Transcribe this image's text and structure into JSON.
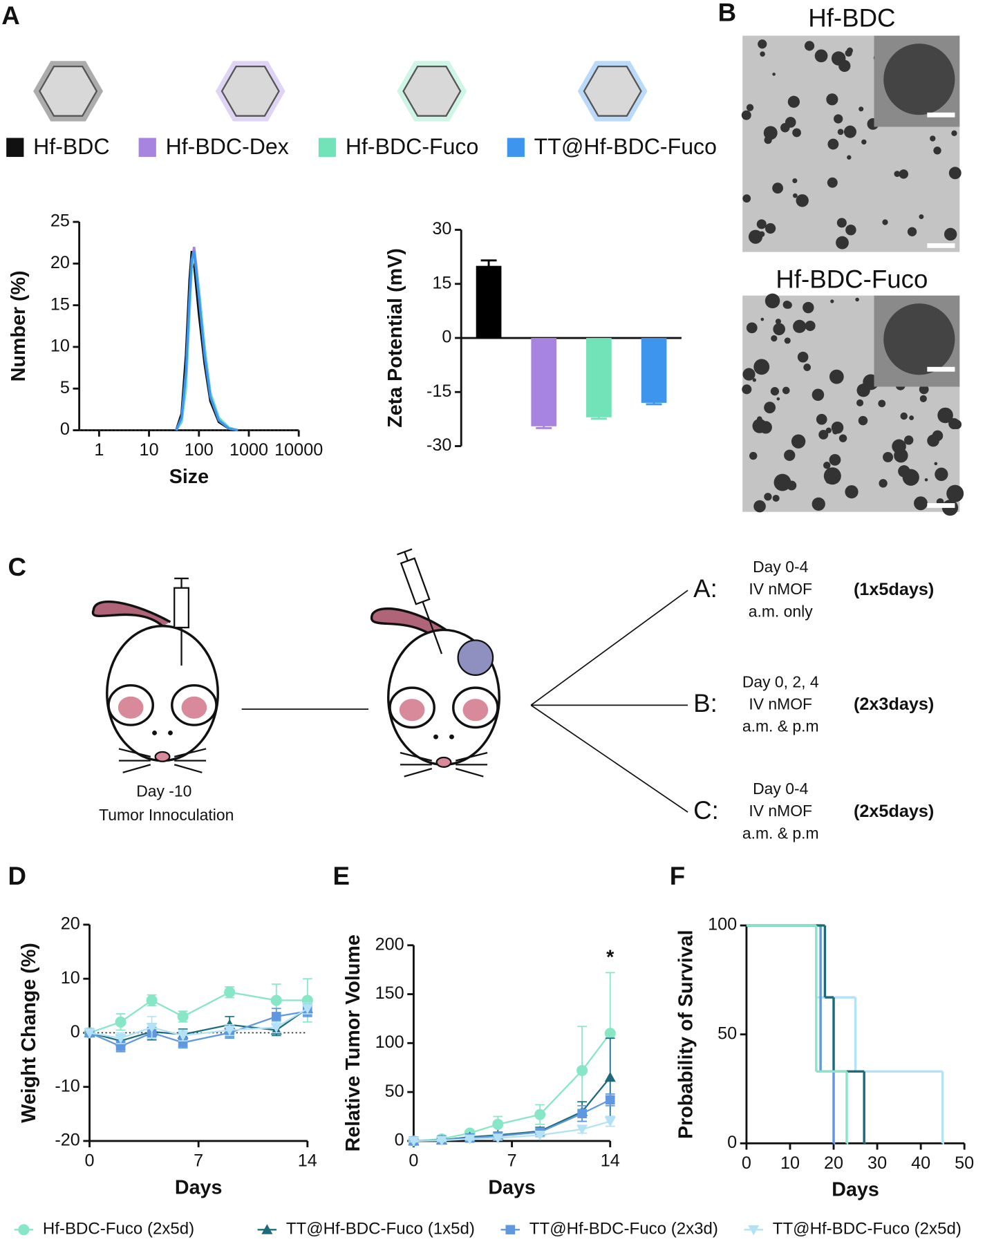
{
  "panels": [
    "A",
    "B",
    "C",
    "D",
    "E",
    "F"
  ],
  "images": [
    {
      "title": "Hf-BDC"
    },
    {
      "title": "Hf-BDC-Fuco"
    }
  ],
  "diagram": {
    "inoculation": [
      "Day -10",
      "Tumor Innoculation"
    ],
    "arms": [
      {
        "label": "A:",
        "lines": [
          "Day 0-4",
          "IV nMOF",
          "a.m. only"
        ],
        "regimen": "(1x5days)"
      },
      {
        "label": "B:",
        "lines": [
          "Day 0, 2, 4",
          "IV nMOF",
          "a.m. & p.m"
        ],
        "regimen": "(2x3days)"
      },
      {
        "label": "C:",
        "lines": [
          "Day 0-4",
          "IV nMOF",
          "a.m. & p.m"
        ],
        "regimen": "(2x5days)"
      }
    ]
  },
  "chart_data": [
    {
      "type": "line",
      "xlog": true,
      "y_label": "Number (%)",
      "x_label": "Size",
      "xlim": [
        0.4,
        10000
      ],
      "xticks": [
        1,
        10,
        100,
        1000,
        10000
      ],
      "ylim": [
        0,
        25
      ],
      "yticks": [
        0,
        5,
        10,
        15,
        20,
        25
      ],
      "zero_line": true,
      "series": [
        {
          "name": "Hf-BDC",
          "color": "#111111",
          "x": [
            35,
            45,
            55,
            65,
            72,
            80,
            100,
            130,
            170,
            250,
            400,
            600
          ],
          "values": [
            0,
            2,
            9,
            18,
            21.5,
            20,
            14,
            8,
            3.5,
            1,
            0.2,
            0
          ]
        },
        {
          "name": "Hf-BDC-Dex",
          "color": "#a784e0",
          "x": [
            35,
            45,
            55,
            65,
            72,
            80,
            100,
            130,
            170,
            250,
            400,
            600
          ],
          "values": [
            0,
            1,
            6,
            15,
            20,
            22,
            17,
            10,
            4.5,
            1.5,
            0.3,
            0
          ]
        },
        {
          "name": "Hf-BDC-Fuco",
          "color": "#72e3b8",
          "x": [
            35,
            45,
            55,
            65,
            72,
            80,
            100,
            130,
            170,
            250,
            400,
            600
          ],
          "values": [
            0,
            1,
            5,
            14,
            19.5,
            21,
            17,
            10,
            4.5,
            1.5,
            0.3,
            0
          ]
        },
        {
          "name": "TT@Hf-BDC-Fuco",
          "color": "#3d95ee",
          "x": [
            35,
            45,
            55,
            65,
            72,
            80,
            100,
            130,
            170,
            250,
            400,
            600
          ],
          "values": [
            0,
            1.5,
            7,
            16,
            20.5,
            21.5,
            16,
            9,
            4,
            1.2,
            0.2,
            0
          ]
        }
      ]
    },
    {
      "type": "bar",
      "y_label": "Zeta Potential (mV)",
      "categories": [
        null,
        null,
        null,
        null
      ],
      "values": [
        20,
        -24.5,
        -22,
        -18
      ],
      "errors": [
        1.5,
        0.5,
        0.4,
        0.4
      ],
      "colors": [
        "#000000",
        "#a784e0",
        "#72e3b8",
        "#3d95ee"
      ],
      "ylim": [
        -30,
        30
      ],
      "yticks": [
        30,
        15,
        0,
        -15,
        -30
      ]
    },
    {
      "type": "line",
      "y_label": "Weight Change (%)",
      "x_label": "Days",
      "xlim": [
        0,
        14
      ],
      "xticks": [
        0,
        7,
        14
      ],
      "ylim": [
        -20,
        20
      ],
      "yticks": [
        -20,
        -10,
        0,
        10,
        20
      ],
      "zero_line": true,
      "series": [
        {
          "name": "Hf-BDC-Fuco (2x5d)",
          "color": "#86e6c6",
          "marker": "circle",
          "x": [
            0,
            2,
            4,
            6,
            9,
            12,
            14
          ],
          "values": [
            0,
            2,
            6,
            3,
            7.5,
            6,
            6
          ],
          "errors": [
            0,
            1.5,
            1,
            1,
            1,
            3,
            4
          ]
        },
        {
          "name": "TT@Hf-BDC-Fuco (1x5d)",
          "color": "#1d6b7a",
          "marker": "triangle",
          "x": [
            0,
            2,
            4,
            6,
            9,
            12,
            14
          ],
          "values": [
            0,
            -1.5,
            0.2,
            -0.3,
            1.5,
            0.5,
            4.5
          ],
          "errors": [
            0,
            1,
            1.5,
            1,
            1.5,
            1,
            1
          ]
        },
        {
          "name": "TT@Hf-BDC-Fuco (2x3d)",
          "color": "#5f98e0",
          "marker": "square",
          "x": [
            0,
            2,
            4,
            6,
            9,
            12,
            14
          ],
          "values": [
            0,
            -2.5,
            0,
            -1.8,
            0,
            3,
            4
          ],
          "errors": [
            0,
            1,
            1,
            1,
            1,
            1.5,
            1
          ]
        },
        {
          "name": "TT@Hf-BDC-Fuco (2x5d)",
          "color": "#b3e2f7",
          "marker": "triangle-down",
          "x": [
            0,
            2,
            4,
            6,
            9,
            12,
            14
          ],
          "values": [
            0,
            -1,
            1,
            -0.5,
            0.5,
            1,
            4.5
          ],
          "errors": [
            0,
            1,
            2,
            1,
            1,
            1,
            1
          ]
        }
      ]
    },
    {
      "type": "line",
      "y_label": "Relative Tumor Volume",
      "x_label": "Days",
      "annotation": "*",
      "xlim": [
        0,
        14
      ],
      "xticks": [
        0,
        7,
        14
      ],
      "ylim": [
        0,
        200
      ],
      "yticks": [
        0,
        50,
        100,
        150,
        200
      ],
      "series": [
        {
          "color": "#86e6c6",
          "marker": "circle",
          "x": [
            0,
            2,
            4,
            6,
            9,
            12,
            14
          ],
          "values": [
            0,
            2,
            8,
            17,
            27,
            72,
            110
          ],
          "errors": [
            1,
            2,
            3,
            8,
            10,
            45,
            62
          ]
        },
        {
          "color": "#1d6b7a",
          "marker": "triangle",
          "x": [
            0,
            2,
            4,
            6,
            9,
            12,
            14
          ],
          "values": [
            0,
            1,
            4,
            6,
            10,
            30,
            65
          ],
          "errors": [
            1,
            1,
            2,
            3,
            4,
            10,
            40
          ]
        },
        {
          "color": "#5f98e0",
          "marker": "square",
          "x": [
            0,
            2,
            4,
            6,
            9,
            12,
            14
          ],
          "values": [
            0,
            1,
            3,
            5,
            9,
            28,
            42
          ],
          "errors": [
            1,
            1,
            2,
            2,
            3,
            8,
            6
          ]
        },
        {
          "color": "#b3e2f7",
          "marker": "triangle-down",
          "x": [
            0,
            2,
            4,
            6,
            9,
            12,
            14
          ],
          "values": [
            0,
            0.5,
            2,
            3,
            6,
            12,
            20
          ],
          "errors": [
            1,
            1,
            1,
            2,
            2,
            4,
            5
          ]
        }
      ]
    },
    {
      "type": "step",
      "y_label": "Probability of Survival",
      "x_label": "Days",
      "xlim": [
        0,
        50
      ],
      "xticks": [
        0,
        10,
        20,
        30,
        40,
        50
      ],
      "ylim": [
        0,
        100
      ],
      "yticks": [
        0,
        50,
        100
      ],
      "series": [
        {
          "color": "#b3e2f7",
          "x": [
            0,
            16,
            25,
            45
          ],
          "values": [
            100,
            67,
            33,
            0
          ]
        },
        {
          "color": "#5f98e0",
          "x": [
            0,
            17,
            20
          ],
          "values": [
            100,
            33,
            0
          ]
        },
        {
          "color": "#1d6b7a",
          "x": [
            0,
            18,
            20,
            27
          ],
          "values": [
            100,
            67,
            33,
            0
          ]
        },
        {
          "color": "#86e6c6",
          "x": [
            0,
            16,
            23
          ],
          "values": [
            100,
            33,
            0
          ]
        }
      ]
    }
  ]
}
